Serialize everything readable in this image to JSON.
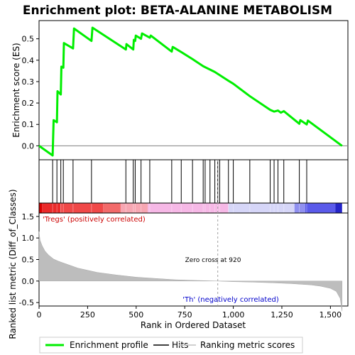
{
  "chart_data": {
    "type": "line",
    "title": "Enrichment plot: BETA-ALANINE METABOLISM",
    "n_genes": 1560,
    "zero_cross": 920,
    "top_panel": {
      "ylabel": "Enrichment score (ES)",
      "ylim": [
        -0.065,
        0.585
      ],
      "yticks": [
        0.0,
        0.1,
        0.2,
        0.3,
        0.4,
        0.5
      ],
      "ytick_labels": [
        "0.0",
        "0.1",
        "0.2",
        "0.3",
        "0.4",
        "0.5"
      ],
      "line_color": "#00ee00",
      "zero_line": true,
      "es_profile": [
        [
          0,
          0.0
        ],
        [
          70,
          -0.045
        ],
        [
          75,
          0.12
        ],
        [
          92,
          0.11
        ],
        [
          95,
          0.255
        ],
        [
          112,
          0.24
        ],
        [
          115,
          0.37
        ],
        [
          125,
          0.365
        ],
        [
          128,
          0.48
        ],
        [
          175,
          0.455
        ],
        [
          180,
          0.548
        ],
        [
          270,
          0.49
        ],
        [
          275,
          0.552
        ],
        [
          447,
          0.45
        ],
        [
          450,
          0.475
        ],
        [
          485,
          0.45
        ],
        [
          488,
          0.495
        ],
        [
          495,
          0.49
        ],
        [
          498,
          0.515
        ],
        [
          525,
          0.5
        ],
        [
          530,
          0.525
        ],
        [
          570,
          0.505
        ],
        [
          575,
          0.515
        ],
        [
          683,
          0.44
        ],
        [
          688,
          0.462
        ],
        [
          732,
          0.438
        ],
        [
          790,
          0.405
        ],
        [
          845,
          0.372
        ],
        [
          905,
          0.345
        ],
        [
          975,
          0.304
        ],
        [
          1000,
          0.29
        ],
        [
          1085,
          0.232
        ],
        [
          1190,
          0.168
        ],
        [
          1210,
          0.16
        ],
        [
          1230,
          0.165
        ],
        [
          1245,
          0.155
        ],
        [
          1260,
          0.162
        ],
        [
          1340,
          0.103
        ],
        [
          1345,
          0.12
        ],
        [
          1378,
          0.1
        ],
        [
          1384,
          0.118
        ],
        [
          1560,
          0.0
        ]
      ]
    },
    "hits": [
      70,
      92,
      112,
      125,
      175,
      270,
      447,
      485,
      495,
      525,
      570,
      683,
      732,
      790,
      845,
      855,
      880,
      905,
      920,
      930,
      975,
      1000,
      1085,
      1190,
      1210,
      1230,
      1260,
      1340,
      1378
    ],
    "rank_bar_colors": [
      {
        "from": 0,
        "to": 15,
        "color": "#d80000"
      },
      {
        "from": 15,
        "to": 110,
        "color": "#ea2a2a"
      },
      {
        "from": 110,
        "to": 330,
        "color": "#f04848"
      },
      {
        "from": 330,
        "to": 420,
        "color": "#f26a6a"
      },
      {
        "from": 420,
        "to": 560,
        "color": "#f7a6b2"
      },
      {
        "from": 560,
        "to": 975,
        "color": "#f6b8e6"
      },
      {
        "from": 975,
        "to": 1315,
        "color": "#d6d6f8"
      },
      {
        "from": 1315,
        "to": 1370,
        "color": "#9090f0"
      },
      {
        "from": 1370,
        "to": 1525,
        "color": "#5a5aea"
      },
      {
        "from": 1525,
        "to": 1560,
        "color": "#2424c8"
      }
    ],
    "bottom_panel": {
      "ylabel": "Ranked list metric (Diff_of_Classes)",
      "xlabel": "Rank in Ordered Dataset",
      "ylim": [
        -0.58,
        1.58
      ],
      "yticks": [
        -0.5,
        0.0,
        0.5,
        1.0,
        1.5
      ],
      "ytick_labels": [
        "-0.5",
        "0.0",
        "0.5",
        "1.0",
        "1.5"
      ],
      "xlim": [
        0,
        1590
      ],
      "xticks": [
        0,
        250,
        500,
        750,
        1000,
        1250,
        1500
      ],
      "xtick_labels": [
        "0",
        "250",
        "500",
        "750",
        "1,000",
        "1,250",
        "1,500"
      ],
      "metric_curve": [
        [
          0,
          1.15
        ],
        [
          5,
          0.95
        ],
        [
          15,
          0.83
        ],
        [
          30,
          0.7
        ],
        [
          50,
          0.6
        ],
        [
          75,
          0.51
        ],
        [
          100,
          0.46
        ],
        [
          150,
          0.38
        ],
        [
          200,
          0.3
        ],
        [
          250,
          0.25
        ],
        [
          300,
          0.2
        ],
        [
          400,
          0.14
        ],
        [
          500,
          0.09
        ],
        [
          600,
          0.06
        ],
        [
          700,
          0.03
        ],
        [
          800,
          0.015
        ],
        [
          920,
          0.0
        ],
        [
          1000,
          -0.015
        ],
        [
          1100,
          -0.025
        ],
        [
          1200,
          -0.04
        ],
        [
          1300,
          -0.06
        ],
        [
          1400,
          -0.09
        ],
        [
          1450,
          -0.12
        ],
        [
          1500,
          -0.17
        ],
        [
          1530,
          -0.24
        ],
        [
          1550,
          -0.4
        ],
        [
          1560,
          -0.7
        ]
      ],
      "pos_label": "'Tregs' (positively correlated)",
      "neg_label": "'Th' (negatively correlated)",
      "zero_cross_label": "Zero cross at 920"
    },
    "legend": {
      "items": [
        {
          "label": "Enrichment profile",
          "color": "#00ee00",
          "style": "thick-line"
        },
        {
          "label": "Hits",
          "color": "#000000",
          "style": "line"
        },
        {
          "label": "Ranking metric scores",
          "color": "#c0c0c0",
          "style": "line"
        }
      ]
    }
  }
}
